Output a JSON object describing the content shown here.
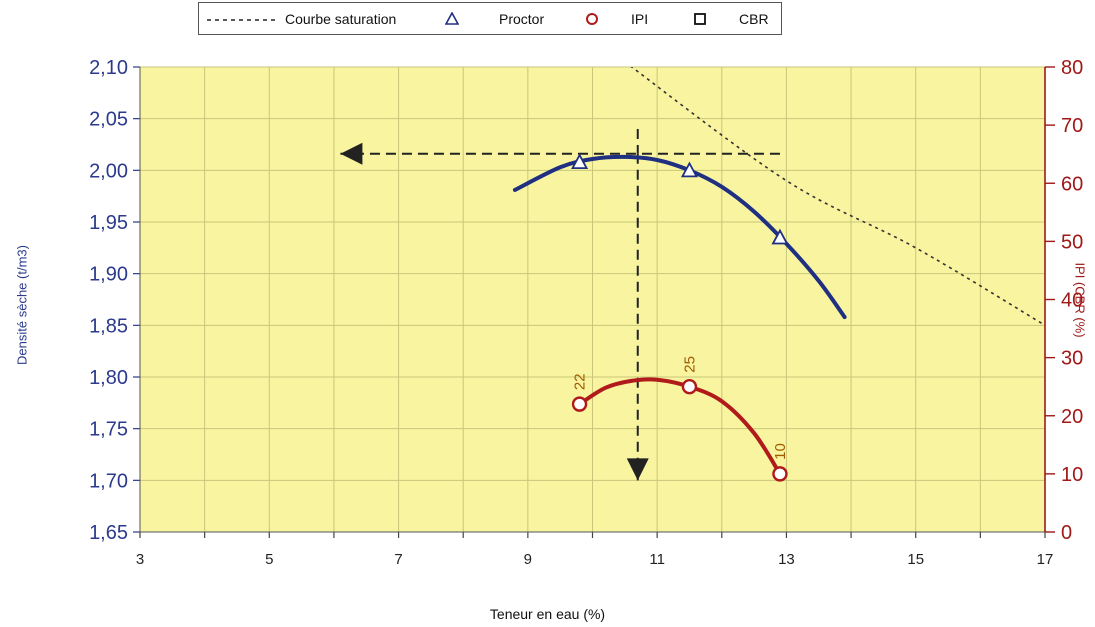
{
  "legend": {
    "saturation": "Courbe saturation",
    "proctor": "Proctor",
    "ipi": "IPI",
    "cbr": "CBR"
  },
  "colors": {
    "plot_bg": "#f8f4a0",
    "grid": "#c9c67a",
    "proctor": "#1f2f82",
    "ipi": "#b01a1a",
    "left_axis": "#2b3a8c",
    "right_axis": "#a01818"
  },
  "chart_data": {
    "type": "line",
    "xlabel": "Teneur en eau (%)",
    "ylabel": "Densité sèche (t/m3)",
    "y2label": "IPI (CBR (%)",
    "xlim": [
      3,
      17
    ],
    "ylim": [
      1.65,
      2.1
    ],
    "y2lim": [
      0,
      80
    ],
    "x_ticks": [
      "3",
      "5",
      "7",
      "9",
      "11",
      "13",
      "15",
      "17"
    ],
    "y_ticks": [
      "1,65",
      "1,70",
      "1,75",
      "1,80",
      "1,85",
      "1,90",
      "1,95",
      "2,00",
      "2,05",
      "2,10"
    ],
    "y2_ticks": [
      "0",
      "10",
      "20",
      "30",
      "40",
      "50",
      "60",
      "70",
      "80"
    ],
    "grid": true,
    "legend_position": "top",
    "series": [
      {
        "name": "Proctor",
        "axis": "left",
        "marker": "triangle",
        "points": [
          {
            "x": 9.8,
            "y": 2.007
          },
          {
            "x": 11.5,
            "y": 1.999
          },
          {
            "x": 12.9,
            "y": 1.934
          }
        ],
        "curve": [
          {
            "x": 8.8,
            "y": 1.981
          },
          {
            "x": 9.5,
            "y": 2.003
          },
          {
            "x": 10.0,
            "y": 2.011
          },
          {
            "x": 10.5,
            "y": 2.013
          },
          {
            "x": 11.0,
            "y": 2.01
          },
          {
            "x": 11.5,
            "y": 2.0
          },
          {
            "x": 12.0,
            "y": 1.984
          },
          {
            "x": 12.5,
            "y": 1.96
          },
          {
            "x": 13.0,
            "y": 1.929
          },
          {
            "x": 13.5,
            "y": 1.893
          },
          {
            "x": 13.9,
            "y": 1.858
          }
        ]
      },
      {
        "name": "IPI",
        "axis": "right",
        "marker": "circle",
        "points": [
          {
            "x": 9.8,
            "y": 22,
            "label": "22"
          },
          {
            "x": 11.5,
            "y": 25,
            "label": "25"
          },
          {
            "x": 12.9,
            "y": 10,
            "label": "10"
          }
        ],
        "curve": [
          {
            "x": 9.8,
            "y": 22
          },
          {
            "x": 10.2,
            "y": 24.8
          },
          {
            "x": 10.6,
            "y": 26
          },
          {
            "x": 11.0,
            "y": 26.2
          },
          {
            "x": 11.5,
            "y": 25
          },
          {
            "x": 12.0,
            "y": 22.5
          },
          {
            "x": 12.5,
            "y": 17
          },
          {
            "x": 12.9,
            "y": 10
          }
        ]
      },
      {
        "name": "Courbe saturation",
        "axis": "left",
        "style": "dotted",
        "curve": [
          {
            "x": 10.5,
            "y": 2.105
          },
          {
            "x": 13.0,
            "y": 1.99
          },
          {
            "x": 15.0,
            "y": 1.925
          },
          {
            "x": 17.0,
            "y": 1.85
          }
        ]
      }
    ],
    "annotations": [
      {
        "type": "dashed-arrow",
        "from": {
          "x": 12.9,
          "y": 2.016
        },
        "to": {
          "x": 6.1,
          "y": 2.016
        }
      },
      {
        "type": "dashed-line",
        "from": {
          "x": 10.7,
          "y": 2.04
        },
        "to": {
          "x": 10.7,
          "y": 2.016
        }
      },
      {
        "type": "dashed-arrow",
        "from": {
          "x": 10.7,
          "y": 2.016
        },
        "to": {
          "x": 10.7,
          "y": 1.7
        }
      }
    ]
  }
}
